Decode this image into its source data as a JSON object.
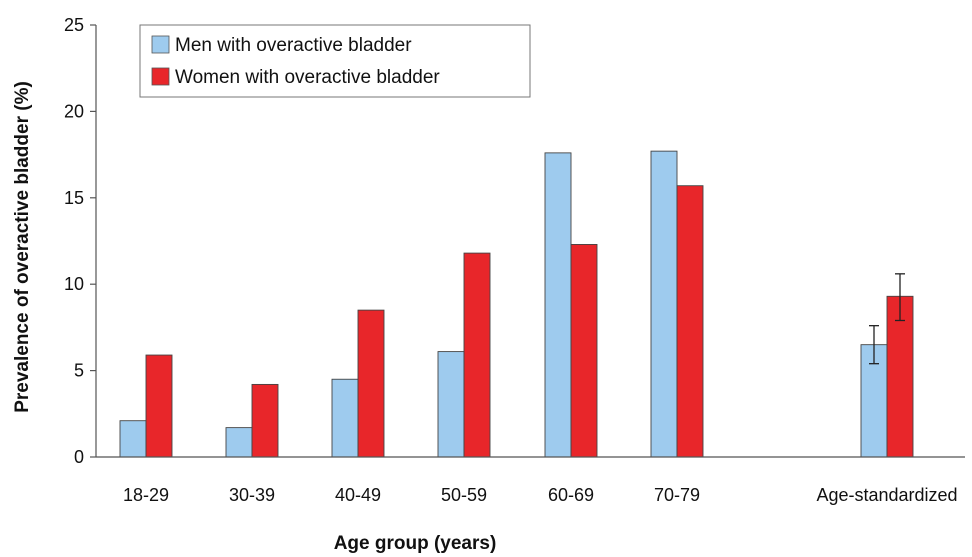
{
  "chart_data": {
    "type": "bar",
    "title": "",
    "xlabel": "Age group (years)",
    "ylabel": "Prevalence of overactive bladder (%)",
    "ylim": [
      0,
      25
    ],
    "yticks": [
      "0",
      "5",
      "10",
      "15",
      "20",
      "25"
    ],
    "categories": [
      "18-29",
      "30-39",
      "40-49",
      "50-59",
      "60-69",
      "70-79",
      "Age-standardized"
    ],
    "series": [
      {
        "name": "Men with overactive bladder",
        "color": "#9ecbee",
        "values": [
          2.1,
          1.7,
          4.5,
          6.1,
          17.6,
          17.7,
          6.5
        ],
        "error": [
          null,
          null,
          null,
          null,
          null,
          null,
          [
            5.4,
            7.6
          ]
        ]
      },
      {
        "name": "Women with overactive bladder",
        "color": "#e8262a",
        "values": [
          5.9,
          4.2,
          8.5,
          11.8,
          12.3,
          15.7,
          9.3
        ],
        "error": [
          null,
          null,
          null,
          null,
          null,
          null,
          [
            7.9,
            10.6
          ]
        ]
      }
    ],
    "legend_position": "top-left",
    "grid": false
  }
}
